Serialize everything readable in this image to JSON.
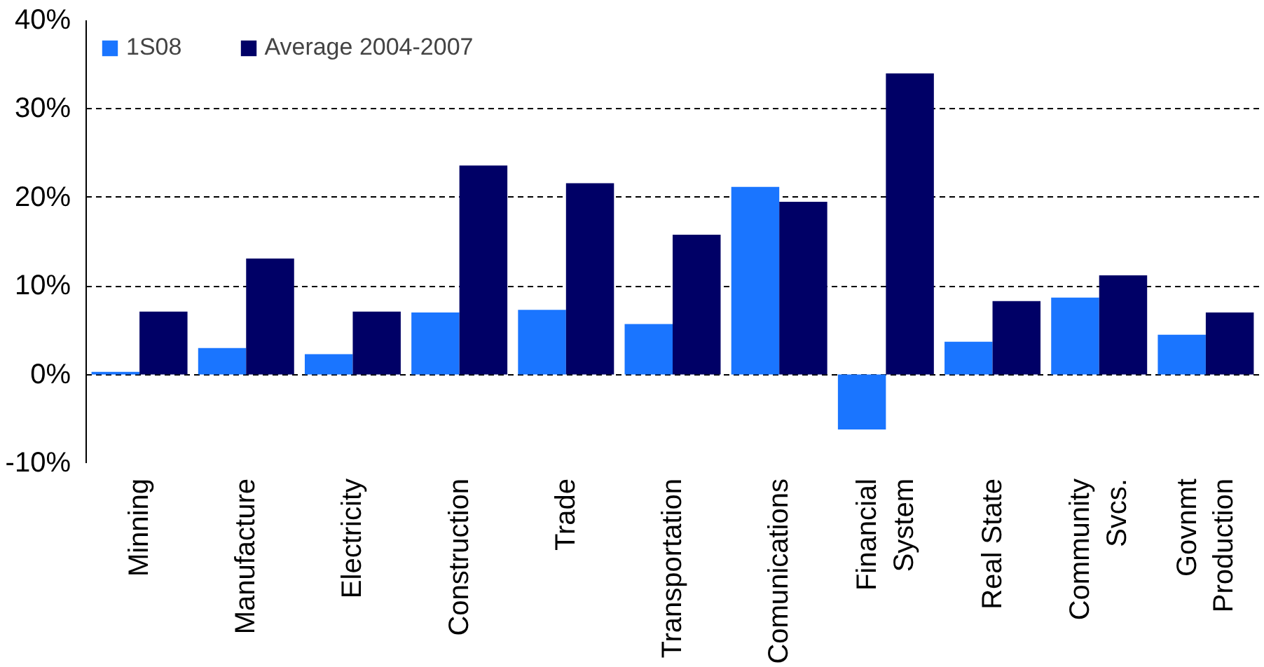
{
  "chart_data": {
    "type": "bar",
    "categories": [
      "Minning",
      "Manufacture",
      "Electricity",
      "Construction",
      "Trade",
      "Transportation",
      "Comunications",
      "Financial\nSystem",
      "Real State",
      "Community\nSvcs.",
      "Govnmt\nProduction"
    ],
    "series": [
      {
        "name": "1S08",
        "color": "#1a75ff",
        "values": [
          0.3,
          3.0,
          2.3,
          7.0,
          7.3,
          5.7,
          21.2,
          -6.2,
          3.7,
          8.7,
          4.5
        ]
      },
      {
        "name": "Average 2004-2007",
        "color": "#000066",
        "values": [
          7.1,
          13.1,
          7.1,
          23.6,
          21.6,
          15.8,
          19.5,
          34.0,
          8.3,
          11.2,
          7.0
        ]
      }
    ],
    "ylim": [
      -10,
      40
    ],
    "yticks": [
      {
        "value": -10,
        "label": "-10%"
      },
      {
        "value": 0,
        "label": "0%"
      },
      {
        "value": 10,
        "label": "10%"
      },
      {
        "value": 20,
        "label": "20%"
      },
      {
        "value": 30,
        "label": "30%"
      },
      {
        "value": 40,
        "label": "40%"
      }
    ],
    "grid": "y",
    "legend": "top left"
  }
}
